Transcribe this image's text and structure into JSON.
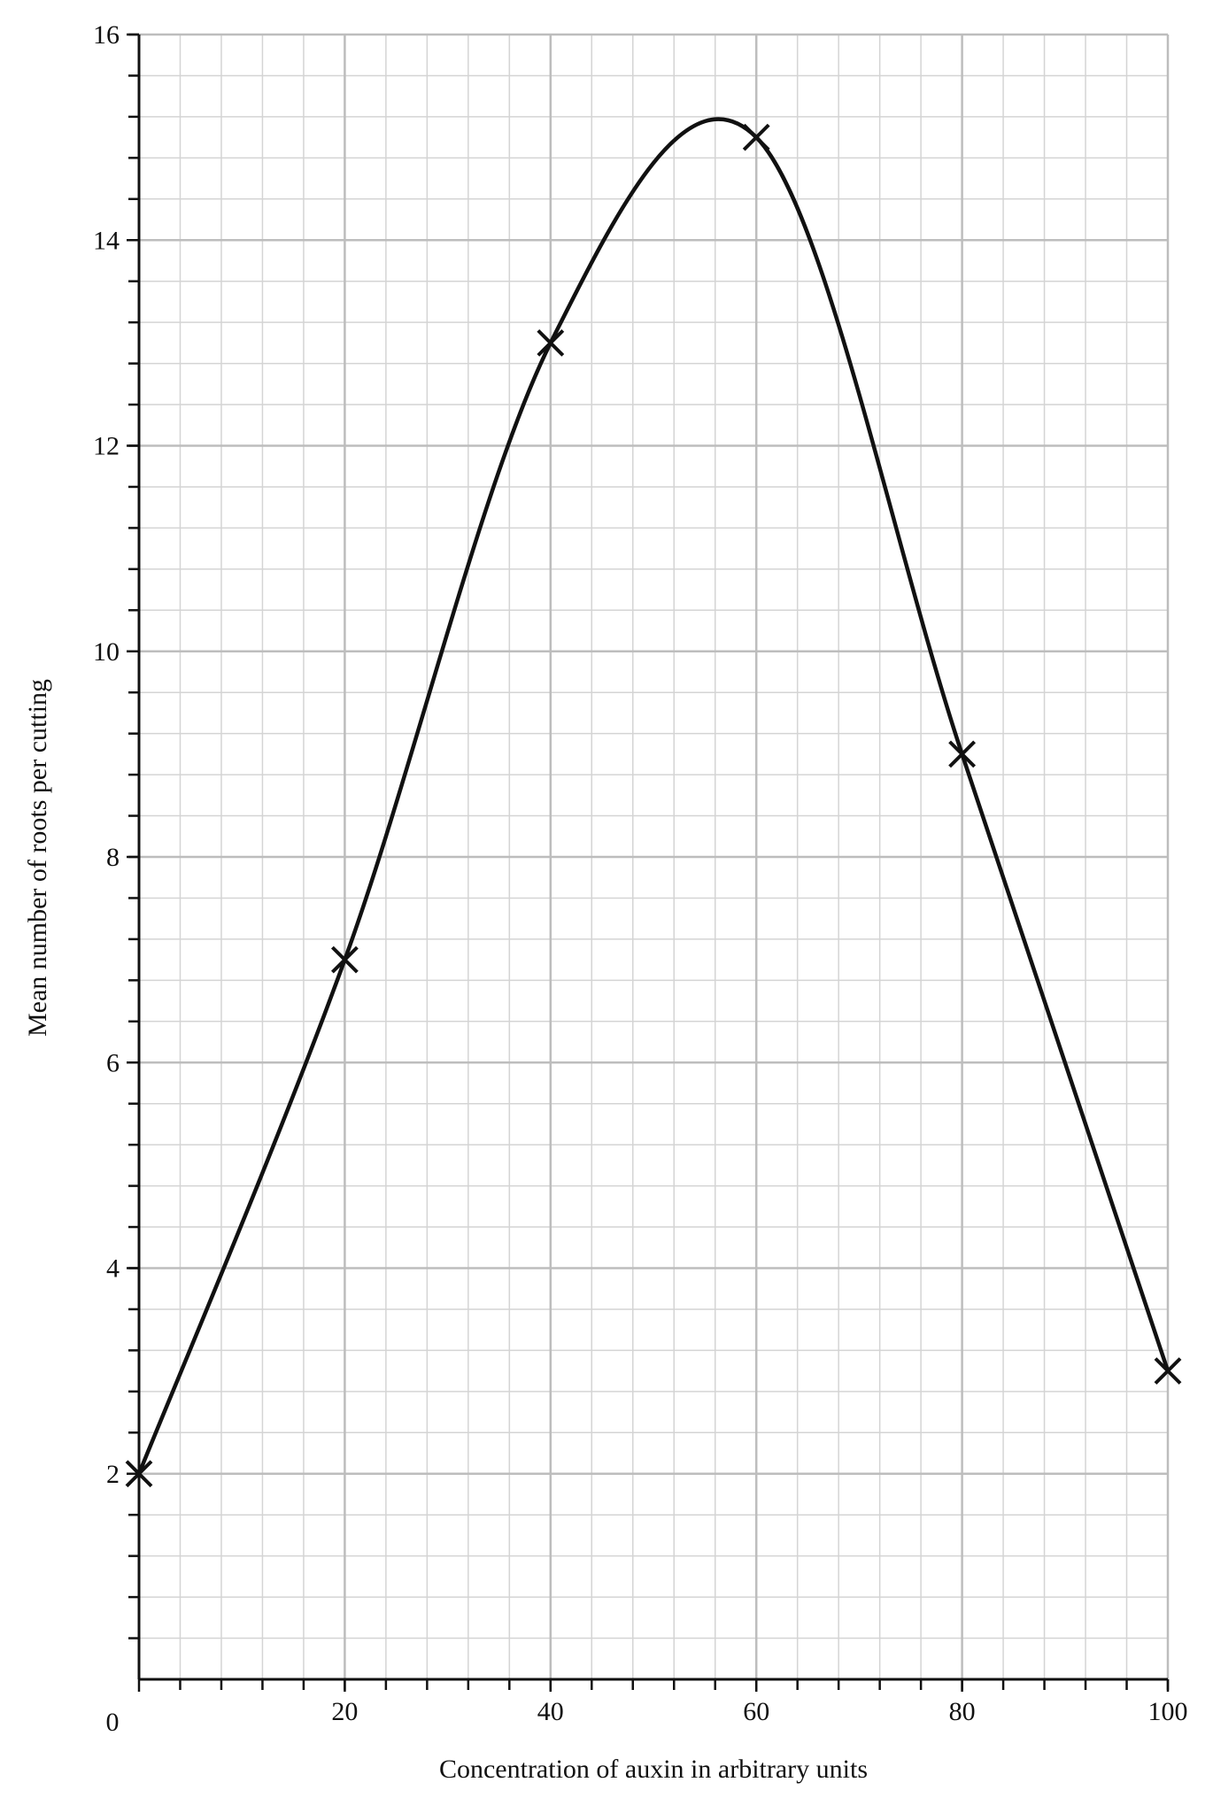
{
  "chart_data": {
    "type": "line",
    "x_label": "Concentration of auxin in arbitrary units",
    "y_label": "Mean number of roots per cutting",
    "x": [
      0,
      20,
      40,
      60,
      80,
      100
    ],
    "y": [
      2,
      7,
      13,
      15,
      9,
      3
    ],
    "color": "#111111",
    "xlim": [
      0,
      100
    ],
    "xticks": [
      0,
      20,
      40,
      60,
      80,
      100
    ],
    "ylim": [
      0,
      16
    ],
    "yticks": [
      2,
      4,
      6,
      8,
      10,
      12,
      14,
      16
    ],
    "grid": true
  }
}
